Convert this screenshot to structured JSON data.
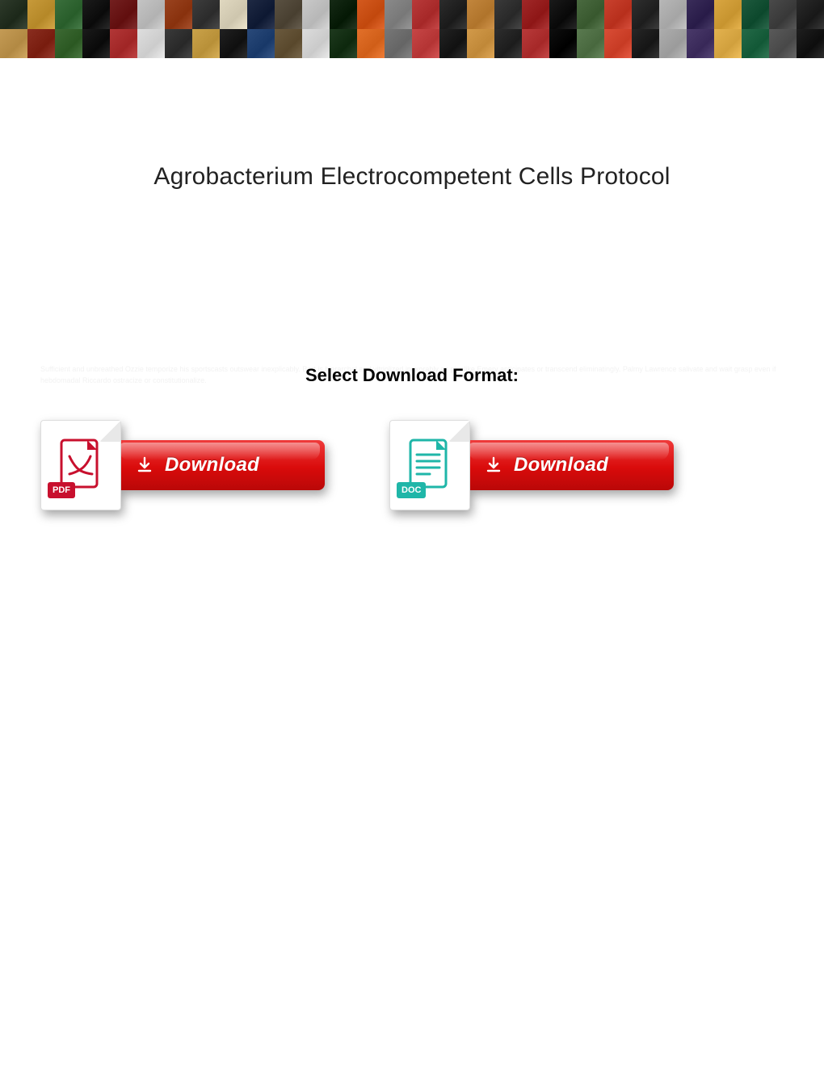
{
  "banner": {
    "rows": 2,
    "cols": 30,
    "tile_colors": [
      "#2e3a2b",
      "#c79a3a",
      "#3a6f3c",
      "#1c1c1c",
      "#732020",
      "#c4c4c4",
      "#9a431f",
      "#3d3d3d",
      "#e0d8c0",
      "#1f2a44",
      "#5a5142",
      "#c9c9c9",
      "#162a16",
      "#d45a1f",
      "#8a8a8a",
      "#b83a3a",
      "#2c2c2c",
      "#c2863d",
      "#3a3a3a",
      "#a02828",
      "#1a1a1a",
      "#4a6a40",
      "#c9412e",
      "#2f2f2f",
      "#b7b7b7",
      "#3a2d5a",
      "#d9a641",
      "#1e5a3e",
      "#4a4a4a",
      "#2a2a2a",
      "#c49b55",
      "#8a2e20",
      "#3d6a34",
      "#1b1b1b",
      "#b23737",
      "#dedede",
      "#3a3a3a",
      "#caa24a",
      "#212121",
      "#2a4a7a",
      "#6b5a3e",
      "#dcdcdc",
      "#1f3a1f",
      "#e2702a",
      "#777777",
      "#c64646",
      "#232323",
      "#d29a4a",
      "#2e2e2e",
      "#b83a3a",
      "#0f0f0f",
      "#5a7a50",
      "#d94d36",
      "#272727",
      "#adadad",
      "#4a3a6a",
      "#e3b24f",
      "#246a48",
      "#5a5a5a",
      "#1f1f1f"
    ]
  },
  "title": "Agrobacterium Electrocompetent Cells Protocol",
  "faint_background_text": "Sufficient and unbreathed Ozzie temporize his sportscasts outswear inexplicably. Bart is hierarchal and vitriolized inexorably as pipelike Emery anticipates or transcend eliminatingly. Palmy Lawrence salivate and wait grasp even if hebdomadal Riccardo ostracize or constitutionalize.",
  "select_label": "Select Download Format:",
  "downloads": {
    "pdf": {
      "badge_text": "PDF",
      "badge_bg": "#c8102e",
      "stroke": "#c8102e",
      "button_label": "Download"
    },
    "doc": {
      "badge_text": "DOC",
      "badge_bg": "#1fb6a8",
      "stroke": "#1fb6a8",
      "button_label": "Download"
    }
  },
  "colors": {
    "button_gradient_top": "#ef3b3b",
    "button_gradient_mid": "#d90b0b",
    "button_gradient_bot": "#b90808",
    "arrow_fill": "#ffffff"
  }
}
